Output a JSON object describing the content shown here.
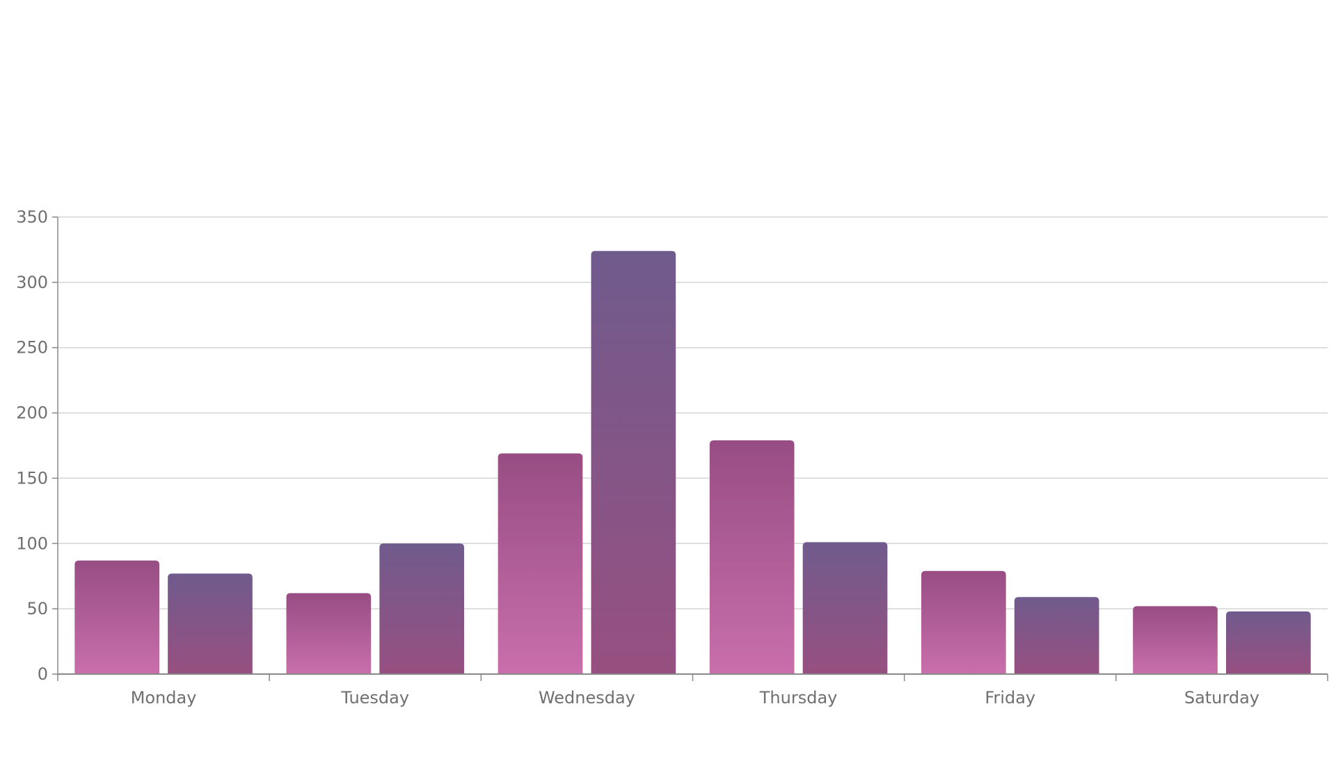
{
  "chart_data": {
    "type": "bar",
    "title": "",
    "xlabel": "",
    "ylabel": "",
    "categories": [
      "Monday",
      "Tuesday",
      "Wednesday",
      "Thursday",
      "Friday",
      "Saturday"
    ],
    "series": [
      {
        "values": [
          87,
          62,
          169,
          179,
          79,
          52
        ]
      },
      {
        "values": [
          77,
          100,
          324,
          101,
          59,
          48
        ]
      }
    ],
    "ylim": [
      0,
      350
    ],
    "yticks": [
      0,
      50,
      100,
      150,
      200,
      250,
      300,
      350
    ],
    "grid": true,
    "legend": "none",
    "colors": {
      "series1_top": "#974d83",
      "series1_bottom": "#c96fab",
      "series2_top": "#705b8d",
      "series2_bottom": "#975080",
      "grid": "#d4d4d4",
      "axis": "#888888",
      "text": "#6f6f6f"
    }
  }
}
